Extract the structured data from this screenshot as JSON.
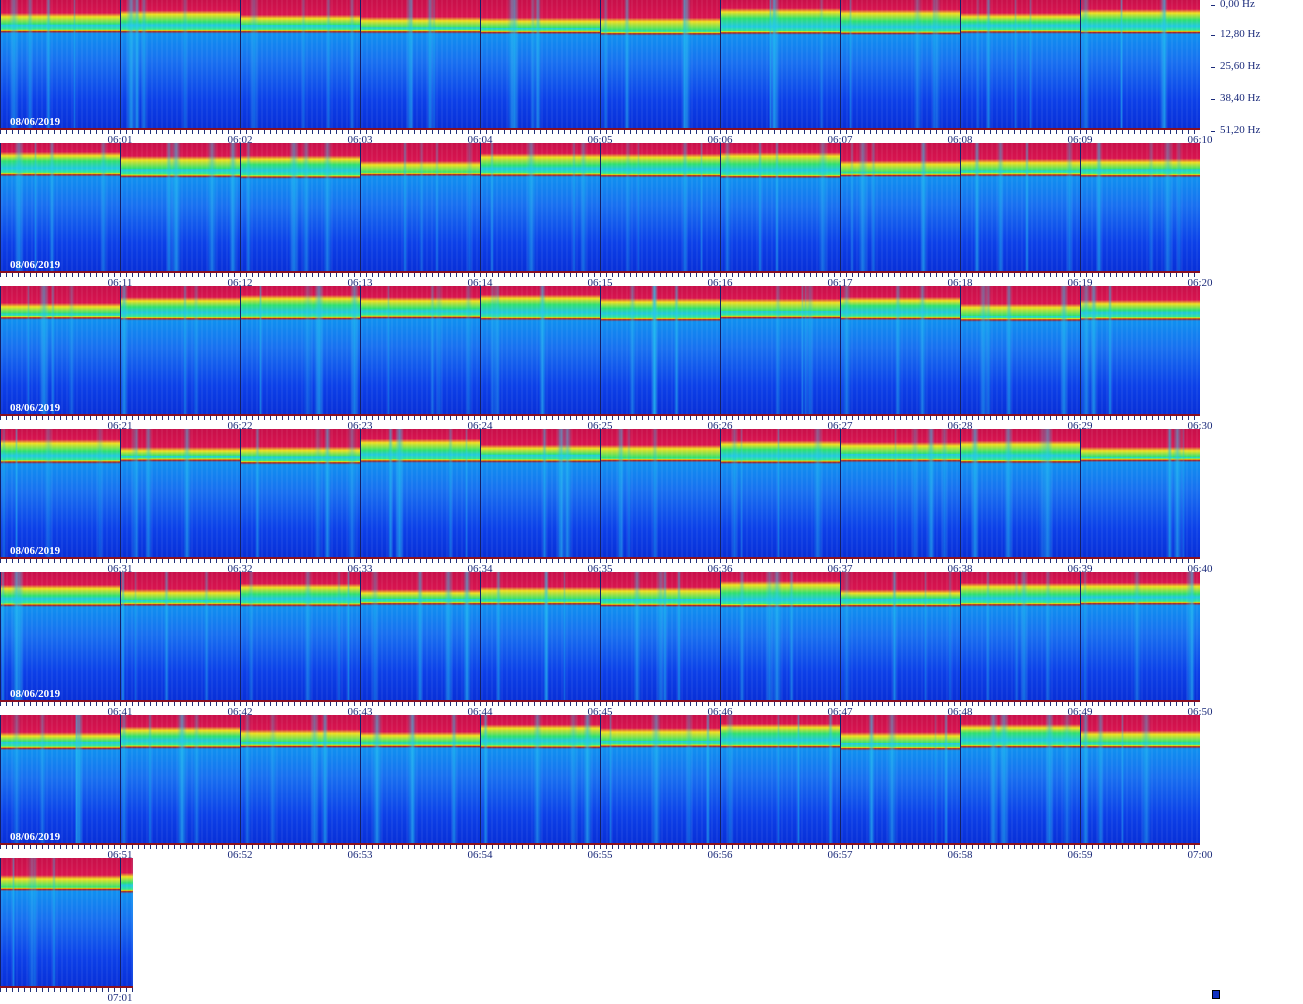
{
  "frequency_labels": [
    "0,00 Hz",
    "12,80 Hz",
    "25,60 Hz",
    "38,40 Hz",
    "51,20 Hz"
  ],
  "rows": [
    {
      "date": "08/06/2019",
      "times": [
        "06:01",
        "06:02",
        "06:03",
        "06:04",
        "06:05",
        "06:06",
        "06:07",
        "06:08",
        "06:09",
        "06:10"
      ]
    },
    {
      "date": "08/06/2019",
      "times": [
        "06:11",
        "06:12",
        "06:13",
        "06:14",
        "06:15",
        "06:16",
        "06:17",
        "06:18",
        "06:19",
        "06:20"
      ]
    },
    {
      "date": "08/06/2019",
      "times": [
        "06:21",
        "06:22",
        "06:23",
        "06:24",
        "06:25",
        "06:26",
        "06:27",
        "06:28",
        "06:29",
        "06:30"
      ]
    },
    {
      "date": "08/06/2019",
      "times": [
        "06:31",
        "06:32",
        "06:33",
        "06:34",
        "06:35",
        "06:36",
        "06:37",
        "06:38",
        "06:39",
        "06:40"
      ]
    },
    {
      "date": "08/06/2019",
      "times": [
        "06:41",
        "06:42",
        "06:43",
        "06:44",
        "06:45",
        "06:46",
        "06:47",
        "06:48",
        "06:49",
        "06:50"
      ]
    },
    {
      "date": "08/06/2019",
      "times": [
        "06:51",
        "06:52",
        "06:53",
        "06:54",
        "06:55",
        "06:56",
        "06:57",
        "06:58",
        "06:59",
        "07:00"
      ]
    },
    {
      "times": [
        "07:01"
      ]
    }
  ]
}
